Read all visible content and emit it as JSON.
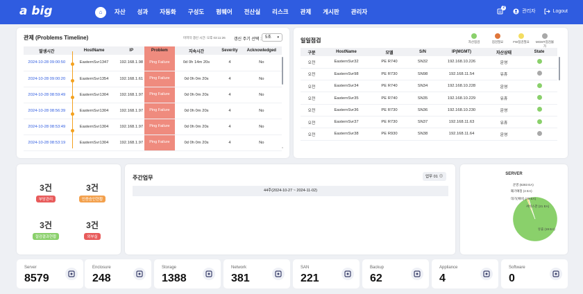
{
  "app": {
    "logo": "a big",
    "logo_sub": ""
  },
  "nav": {
    "home_icon": "home-icon",
    "items": [
      "자산",
      "성과",
      "자동화",
      "구성도",
      "펌웨어",
      "전산실",
      "리스크",
      "관제",
      "게시판",
      "관리자"
    ]
  },
  "topbar": {
    "notifications_count": "2",
    "user_label": "관리자",
    "logout_label": "Logout"
  },
  "problems": {
    "title": "관제 (Problems Timeline)",
    "update_text": "마지막 갱신 시간: 오후 03:11:26",
    "refresh_label": "갱신 주기 선택 :",
    "refresh_value": "5초",
    "columns": [
      "발생시간",
      "HostName",
      "IP",
      "Problem",
      "지속시간",
      "Severity",
      "Acknowledged"
    ],
    "rows": [
      {
        "time": "2024-10-28 09:00:50",
        "host": "EasternSvr1347",
        "ip": "192.168.1.98",
        "problem": "Ping Failure",
        "duration": "0d 0h 14m 20s",
        "severity": "4",
        "ack": "No"
      },
      {
        "time": "2024-10-28 09:00:20",
        "host": "EasternSvr1354",
        "ip": "192.168.1.61",
        "problem": "Ping Failure",
        "duration": "0d 0h 0m 20s",
        "severity": "4",
        "ack": "No"
      },
      {
        "time": "2024-10-28 08:59:49",
        "host": "EasternSvr1304",
        "ip": "192.168.1.97",
        "problem": "Ping Failure",
        "duration": "0d 0h 0m 20s",
        "severity": "4",
        "ack": "No"
      },
      {
        "time": "2024-10-28 08:56:39",
        "host": "EasternSvr1304",
        "ip": "192.168.1.97",
        "problem": "Ping Failure",
        "duration": "0d 0h 0m 20s",
        "severity": "4",
        "ack": "No"
      },
      {
        "time": "2024-10-28 08:53:49",
        "host": "EasternSvr1304",
        "ip": "192.168.1.97",
        "problem": "Ping Failure",
        "duration": "0d 0h 0m 20s",
        "severity": "4",
        "ack": "No"
      },
      {
        "time": "2024-10-28 08:53:19",
        "host": "EasternSvr1304",
        "ip": "192.168.1.97",
        "problem": "Ping Failure",
        "duration": "0d 0h 0m 20s",
        "severity": "4",
        "ack": "No"
      }
    ]
  },
  "daily": {
    "title": "일일점검",
    "legend": [
      {
        "label": "자산점검",
        "color": "#8ad06b"
      },
      {
        "label": "점검필요",
        "color": "#e0763a"
      },
      {
        "label": "FW점검필요",
        "color": "#f3dd62"
      },
      {
        "label": "MGMT점검불가",
        "color": "#a8a8a8"
      }
    ],
    "columns": [
      "구분",
      "HostName",
      "모델",
      "S/N",
      "IP(MGMT)",
      "자산상태",
      "State"
    ],
    "rows": [
      {
        "type": "오전",
        "host": "EasternSvr32",
        "model": "PE R740",
        "sn": "SN32",
        "ip": "192.168.10.226",
        "status": "운영",
        "state": "#8ad06b"
      },
      {
        "type": "오전",
        "host": "EasternSvr98",
        "model": "PE R730",
        "sn": "SN98",
        "ip": "192.168.11.54",
        "status": "유휴",
        "state": "#a8a8a8"
      },
      {
        "type": "오전",
        "host": "EasternSvr34",
        "model": "PE R740",
        "sn": "SN34",
        "ip": "192.168.10.228",
        "status": "운영",
        "state": "#8ad06b"
      },
      {
        "type": "오전",
        "host": "EasternSvr35",
        "model": "PE R740",
        "sn": "SN35",
        "ip": "192.168.10.229",
        "status": "유휴",
        "state": "#8ad06b"
      },
      {
        "type": "오전",
        "host": "EasternSvr36",
        "model": "PE R730",
        "sn": "SN36",
        "ip": "192.168.10.230",
        "status": "운영",
        "state": "#8ad06b"
      },
      {
        "type": "오전",
        "host": "EasternSvr37",
        "model": "PE R730",
        "sn": "SN37",
        "ip": "192.168.11.63",
        "status": "유휴",
        "state": "#8ad06b"
      },
      {
        "type": "오전",
        "host": "EasternSvr38",
        "model": "PE R930",
        "sn": "SN38",
        "ip": "192.168.11.64",
        "status": "운영",
        "state": "#a8a8a8"
      }
    ]
  },
  "counts": [
    {
      "num": "3건",
      "label": "부당관리",
      "color": "#e85b5b"
    },
    {
      "num": "3건",
      "label": "인증승인현황",
      "color": "#f3a04c"
    },
    {
      "num": "3건",
      "label": "절검결과현황",
      "color": "#8ad06b"
    },
    {
      "num": "3건",
      "label": "외부실",
      "color": "#e85b5b"
    }
  ],
  "weekly": {
    "title": "주간업무",
    "button_label": "업무 01",
    "week_range": "44주(2024-10-27 ~ 2024-11-02)"
  },
  "chart_data": {
    "type": "pie",
    "title": "SERVER",
    "categories": [
      "운영",
      "폐기예정",
      "대기(예비)",
      "서비스관",
      "유휴"
    ],
    "values": [
      8283,
      4,
      79,
      21,
      19
    ],
    "labels": [
      "운영 (8283 EA)",
      "폐기예정 (4 EA)",
      "대기(예비) (79 EA)",
      "서비스관 (21 EA)",
      "유휴 (19 EA)"
    ],
    "colors": [
      "#8ad06b",
      "#e85b5b",
      "#f3dd62",
      "#a8c8e8",
      "#cccccc"
    ]
  },
  "stats": [
    {
      "name": "Server",
      "value": "8579",
      "icon": "server-icon"
    },
    {
      "name": "Enclosure",
      "value": "248",
      "icon": "enclosure-icon"
    },
    {
      "name": "Storage",
      "value": "1388",
      "icon": "storage-icon"
    },
    {
      "name": "Network",
      "value": "381",
      "icon": "network-icon"
    },
    {
      "name": "SAN",
      "value": "221",
      "icon": "san-icon"
    },
    {
      "name": "Backup",
      "value": "62",
      "icon": "backup-icon"
    },
    {
      "name": "Appliance",
      "value": "4",
      "icon": "appliance-icon"
    },
    {
      "name": "Software",
      "value": "0",
      "icon": "software-icon"
    }
  ]
}
